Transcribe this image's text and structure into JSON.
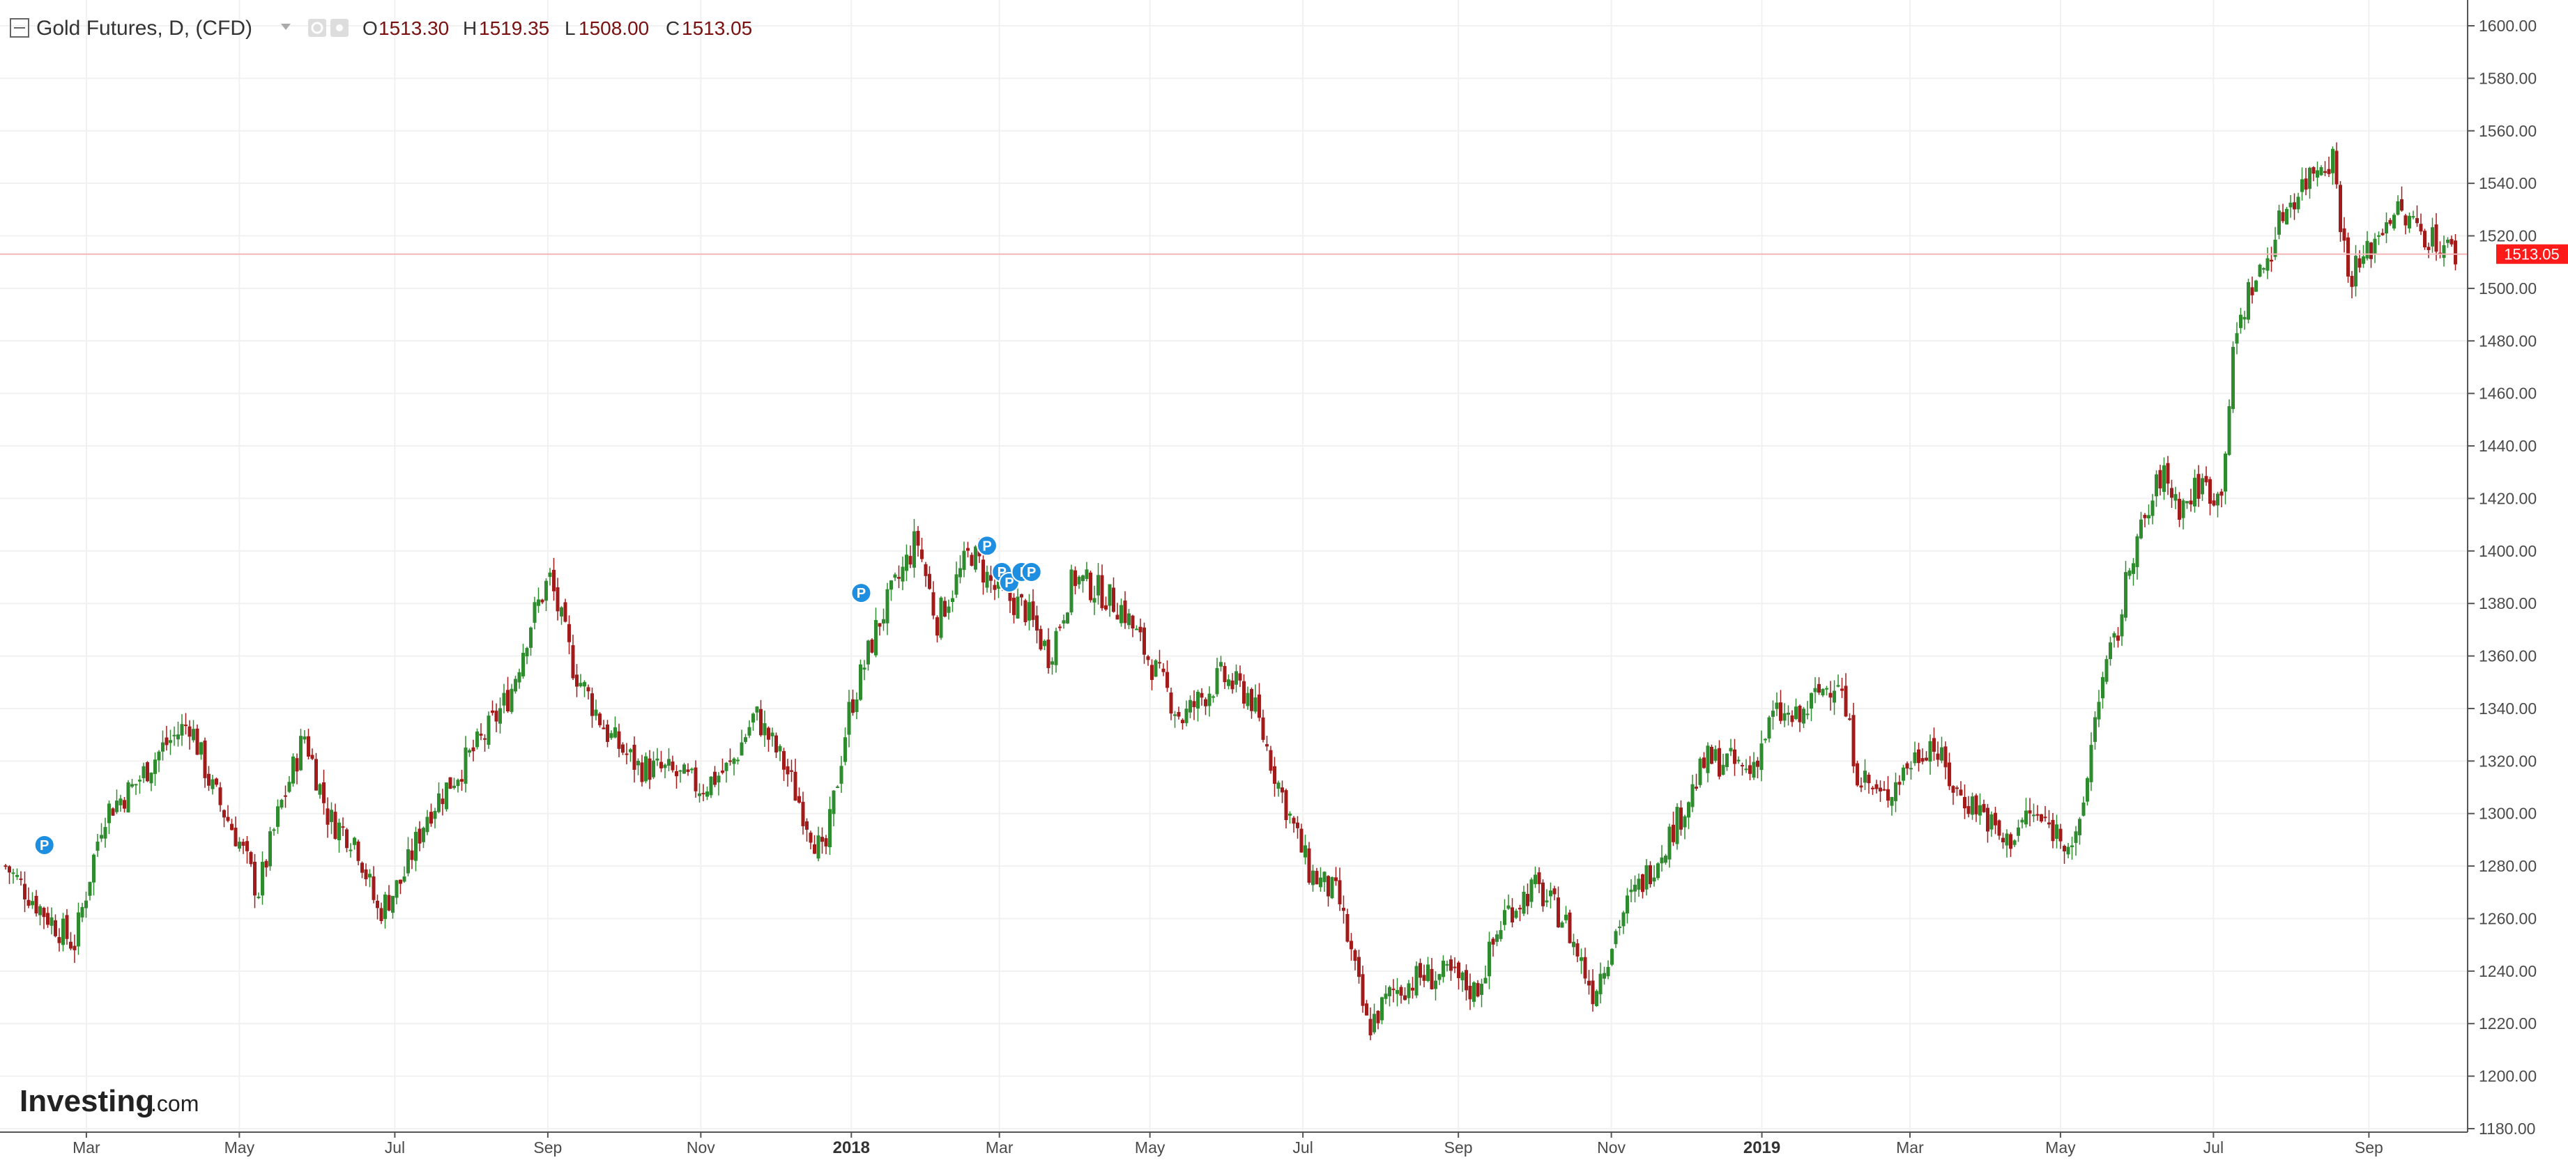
{
  "header": {
    "symbol": "Gold Futures, D, (CFD)",
    "o_key": "O",
    "o_val": "1513.30",
    "h_key": "H",
    "h_val": "1519.35",
    "l_key": "L",
    "l_val": "1508.00",
    "c_key": "C",
    "c_val": "1513.05"
  },
  "logo": {
    "main": "Investing",
    "sub": ".com"
  },
  "price_tag": "1513.05",
  "colors": {
    "up": "#2e8b2e",
    "down": "#a11b1b",
    "last_line": "#f4b6b6",
    "tag": "#ff1a1a",
    "marker": "#1e8fe0"
  },
  "chart_data": {
    "type": "candlestick",
    "title": "Gold Futures, D, (CFD)",
    "ylim": [
      1180,
      1600
    ],
    "y_ticks": [
      "1600.00",
      "1580.00",
      "1560.00",
      "1540.00",
      "1520.00",
      "1500.00",
      "1480.00",
      "1460.00",
      "1440.00",
      "1420.00",
      "1400.00",
      "1380.00",
      "1360.00",
      "1340.00",
      "1320.00",
      "1300.00",
      "1280.00",
      "1260.00",
      "1240.00",
      "1220.00",
      "1200.00",
      "1180.00"
    ],
    "x_ticks": [
      {
        "label": "Mar",
        "t": 0.035,
        "year": false
      },
      {
        "label": "May",
        "t": 0.097,
        "year": false
      },
      {
        "label": "Jul",
        "t": 0.16,
        "year": false
      },
      {
        "label": "Sep",
        "t": 0.222,
        "year": false
      },
      {
        "label": "Nov",
        "t": 0.284,
        "year": false
      },
      {
        "label": "2018",
        "t": 0.345,
        "year": true
      },
      {
        "label": "Mar",
        "t": 0.405,
        "year": false
      },
      {
        "label": "May",
        "t": 0.466,
        "year": false
      },
      {
        "label": "Jul",
        "t": 0.528,
        "year": false
      },
      {
        "label": "Sep",
        "t": 0.591,
        "year": false
      },
      {
        "label": "Nov",
        "t": 0.653,
        "year": false
      },
      {
        "label": "2019",
        "t": 0.714,
        "year": true
      },
      {
        "label": "Mar",
        "t": 0.774,
        "year": false
      },
      {
        "label": "May",
        "t": 0.835,
        "year": false
      },
      {
        "label": "Jul",
        "t": 0.897,
        "year": false
      },
      {
        "label": "Sep",
        "t": 0.96,
        "year": false
      }
    ],
    "anchors": [
      [
        0.0,
        1280
      ],
      [
        0.016,
        1262
      ],
      [
        0.028,
        1250
      ],
      [
        0.04,
        1300
      ],
      [
        0.052,
        1310
      ],
      [
        0.064,
        1325
      ],
      [
        0.075,
        1335
      ],
      [
        0.084,
        1310
      ],
      [
        0.095,
        1290
      ],
      [
        0.103,
        1270
      ],
      [
        0.112,
        1302
      ],
      [
        0.122,
        1330
      ],
      [
        0.132,
        1298
      ],
      [
        0.143,
        1290
      ],
      [
        0.152,
        1262
      ],
      [
        0.162,
        1275
      ],
      [
        0.172,
        1300
      ],
      [
        0.184,
        1315
      ],
      [
        0.196,
        1330
      ],
      [
        0.206,
        1346
      ],
      [
        0.214,
        1372
      ],
      [
        0.222,
        1390
      ],
      [
        0.232,
        1355
      ],
      [
        0.246,
        1330
      ],
      [
        0.258,
        1318
      ],
      [
        0.27,
        1316
      ],
      [
        0.284,
        1310
      ],
      [
        0.296,
        1318
      ],
      [
        0.306,
        1338
      ],
      [
        0.318,
        1318
      ],
      [
        0.326,
        1300
      ],
      [
        0.334,
        1282
      ],
      [
        0.344,
        1338
      ],
      [
        0.356,
        1372
      ],
      [
        0.366,
        1392
      ],
      [
        0.372,
        1405
      ],
      [
        0.38,
        1373
      ],
      [
        0.394,
        1400
      ],
      [
        0.404,
        1385
      ],
      [
        0.416,
        1378
      ],
      [
        0.426,
        1360
      ],
      [
        0.436,
        1390
      ],
      [
        0.446,
        1385
      ],
      [
        0.456,
        1378
      ],
      [
        0.466,
        1360
      ],
      [
        0.48,
        1336
      ],
      [
        0.496,
        1352
      ],
      [
        0.508,
        1345
      ],
      [
        0.52,
        1310
      ],
      [
        0.532,
        1278
      ],
      [
        0.544,
        1268
      ],
      [
        0.556,
        1218
      ],
      [
        0.566,
        1232
      ],
      [
        0.578,
        1238
      ],
      [
        0.59,
        1238
      ],
      [
        0.6,
        1232
      ],
      [
        0.612,
        1262
      ],
      [
        0.624,
        1272
      ],
      [
        0.636,
        1260
      ],
      [
        0.648,
        1232
      ],
      [
        0.66,
        1262
      ],
      [
        0.672,
        1280
      ],
      [
        0.684,
        1300
      ],
      [
        0.694,
        1320
      ],
      [
        0.702,
        1320
      ],
      [
        0.712,
        1316
      ],
      [
        0.722,
        1338
      ],
      [
        0.732,
        1335
      ],
      [
        0.74,
        1346
      ],
      [
        0.748,
        1352
      ],
      [
        0.756,
        1316
      ],
      [
        0.766,
        1305
      ],
      [
        0.776,
        1318
      ],
      [
        0.786,
        1328
      ],
      [
        0.796,
        1308
      ],
      [
        0.806,
        1302
      ],
      [
        0.816,
        1288
      ],
      [
        0.826,
        1300
      ],
      [
        0.836,
        1294
      ],
      [
        0.846,
        1288
      ],
      [
        0.854,
        1345
      ],
      [
        0.862,
        1368
      ],
      [
        0.868,
        1400
      ],
      [
        0.874,
        1412
      ],
      [
        0.88,
        1430
      ],
      [
        0.888,
        1416
      ],
      [
        0.896,
        1426
      ],
      [
        0.904,
        1420
      ],
      [
        0.91,
        1480
      ],
      [
        0.916,
        1500
      ],
      [
        0.922,
        1508
      ],
      [
        0.93,
        1530
      ],
      [
        0.938,
        1540
      ],
      [
        0.944,
        1548
      ],
      [
        0.95,
        1550
      ],
      [
        0.956,
        1505
      ],
      [
        0.962,
        1510
      ],
      [
        0.968,
        1520
      ],
      [
        0.974,
        1530
      ],
      [
        1.0,
        1513
      ]
    ],
    "markers": [
      {
        "label": "P",
        "t": 0.018,
        "y": 1288
      },
      {
        "label": "P",
        "t": 0.349,
        "y": 1384
      },
      {
        "label": "P",
        "t": 0.4,
        "y": 1402
      },
      {
        "label": "P",
        "t": 0.406,
        "y": 1392
      },
      {
        "label": "P",
        "t": 0.409,
        "y": 1388
      },
      {
        "label": "I",
        "t": 0.414,
        "y": 1392
      },
      {
        "label": "P",
        "t": 0.418,
        "y": 1392
      }
    ],
    "last_price": 1513.05
  }
}
